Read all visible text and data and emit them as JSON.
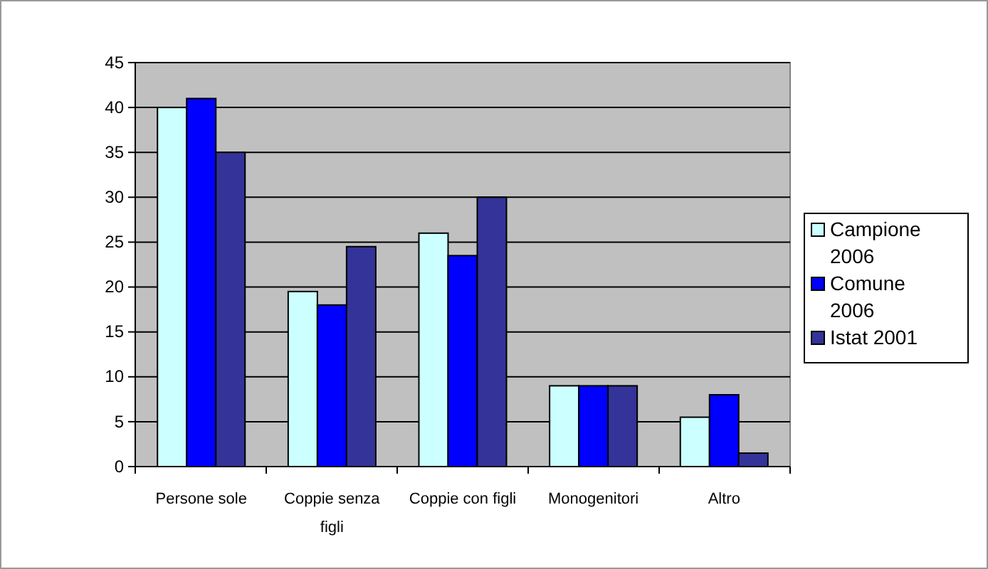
{
  "chart_data": {
    "type": "bar",
    "categories": [
      "Persone sole",
      "Coppie senza figli",
      "Coppie con figli",
      "Monogenitori",
      "Altro"
    ],
    "series": [
      {
        "name": "Campione 2006",
        "color": "#ccffff",
        "values": [
          40,
          19.5,
          26,
          9,
          5.5
        ]
      },
      {
        "name": "Comune 2006",
        "color": "#0000ff",
        "values": [
          41,
          18,
          23.5,
          9,
          8
        ]
      },
      {
        "name": "Istat 2001",
        "color": "#333399",
        "values": [
          35,
          24.5,
          30,
          9,
          1.5
        ]
      }
    ],
    "ylim": [
      0,
      45
    ],
    "yticks": [
      0,
      5,
      10,
      15,
      20,
      25,
      30,
      35,
      40,
      45
    ],
    "grid": "y",
    "legend": "right"
  }
}
